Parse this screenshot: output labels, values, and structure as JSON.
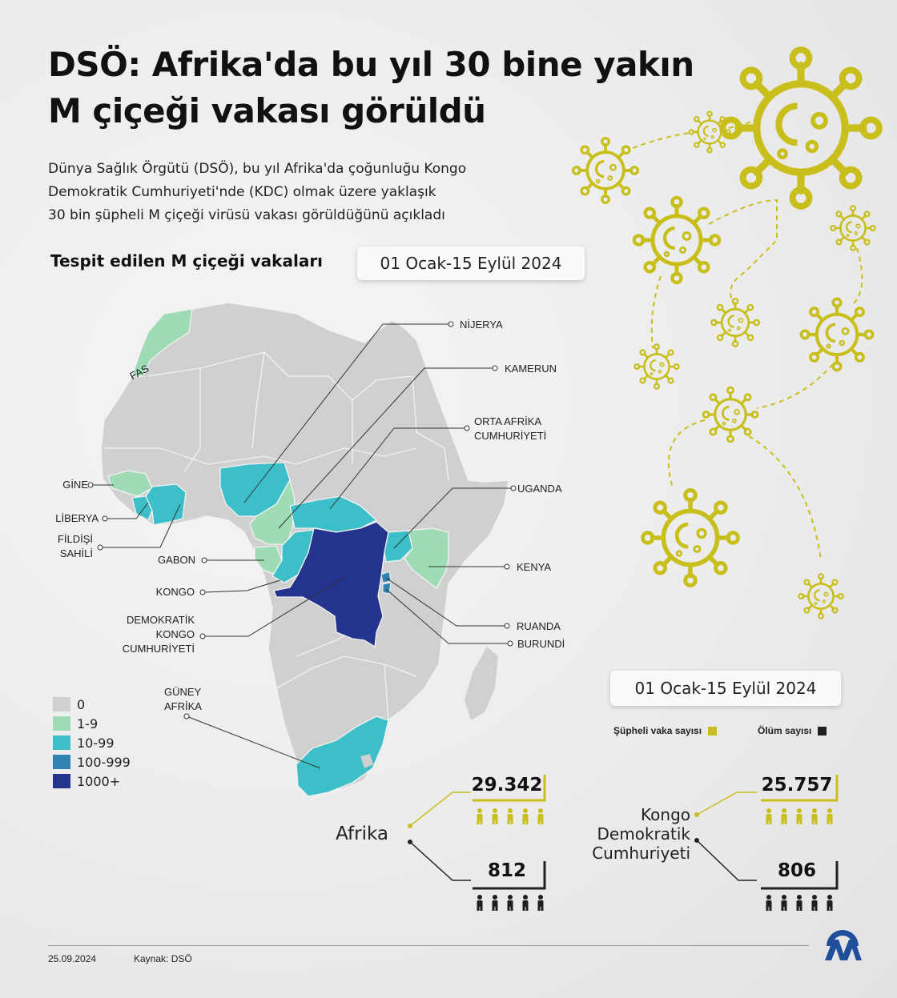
{
  "title": "DSÖ: Afrika'da bu yıl 30 bine yakın M çiçeği vakası görüldü",
  "subtitle_lines": [
    "Dünya Sağlık Örgütü (DSÖ), bu yıl Afrika'da çoğunluğu Kongo",
    "Demokratik Cumhuriyeti'nde (KDC) olmak üzere yaklaşık",
    "30 bin şüpheli M çiçeği virüsü vakası görüldüğünü açıkladı"
  ],
  "map_heading": "Tespit edilen M çiçeği vakaları",
  "date_range": "01 Ocak-15 Eylül 2024",
  "country_labels": {
    "morocco": "FAS",
    "nigeria": "NİJERYA",
    "cameroon": "KAMERUN",
    "car": [
      "ORTA AFRİKA",
      "CUMHURİYETİ"
    ],
    "guinea": "GİNE",
    "liberia": "LİBERYA",
    "ivory_coast": [
      "FİLDİŞİ",
      "SAHİLİ"
    ],
    "gabon": "GABON",
    "congo": "KONGO",
    "drc": [
      "DEMOKRATİK",
      "KONGO",
      "CUMHURİYETİ"
    ],
    "uganda": "UGANDA",
    "kenya": "KENYA",
    "rwanda": "RUANDA",
    "burundi": "BURUNDİ",
    "south_africa": [
      "GÜNEY",
      "AFRİKA"
    ]
  },
  "legend": [
    {
      "label": "0",
      "color": "#d0d0d0"
    },
    {
      "label": "1-9",
      "color": "#9fdcb5"
    },
    {
      "label": "10-99",
      "color": "#3dbfca"
    },
    {
      "label": "100-999",
      "color": "#2f83b4"
    },
    {
      "label": "1000+",
      "color": "#23338e"
    }
  ],
  "stats_legend": {
    "suspected_label": "Şüpheli vaka sayısı",
    "suspected_color": "#c8bf1d",
    "death_label": "Ölüm sayısı",
    "death_color": "#1f1f1f"
  },
  "stats": {
    "africa": {
      "name": "Afrika",
      "suspected": "29.342",
      "deaths": "812"
    },
    "drc": {
      "name_lines": [
        "Kongo",
        "Demokratik",
        "Cumhuriyeti"
      ],
      "suspected": "25.757",
      "deaths": "806"
    }
  },
  "footer": {
    "date": "25.09.2024",
    "source": "Kaynak: DSÖ",
    "logo": "AA"
  },
  "icons": {
    "virus": "virus-icon",
    "person": "person-icon",
    "logo": "aa-logo"
  }
}
